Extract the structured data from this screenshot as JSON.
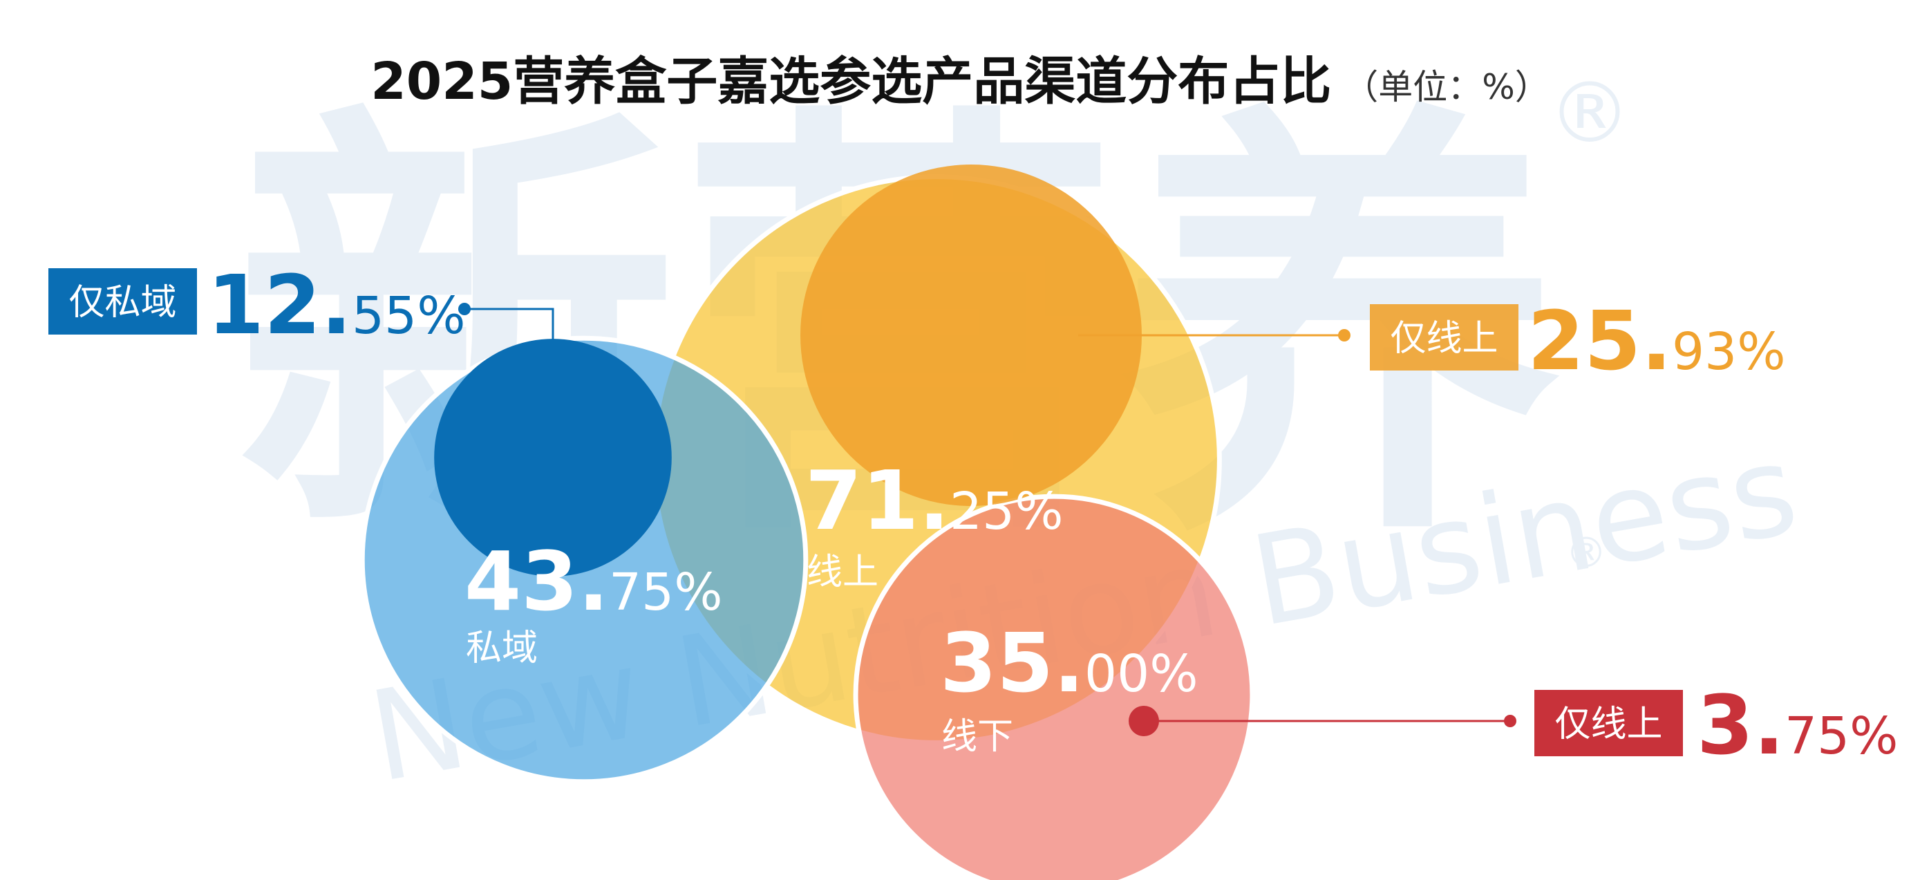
{
  "title": "2025营养盒子嘉选参选产品渠道分布占比",
  "unit": "（单位：%）",
  "watermark": {
    "cn": "新营养",
    "en": "New Nutrition Business",
    "mark": "®"
  },
  "colors": {
    "online": "#F8C330",
    "online_only": "#F0A22E",
    "private": "#4FA8E2",
    "private_only": "#0A6EB4",
    "offline": "#F07E73",
    "offline_only": "#C8323A",
    "bubble_text": "#ffffff"
  },
  "chart_data": {
    "type": "bubble",
    "title": "2025营养盒子嘉选参选产品渠道分布占比",
    "unit": "%",
    "series": [
      {
        "name": "线上",
        "value": 71.25,
        "int": "71.",
        "dec": "25%",
        "color": "#F8C330"
      },
      {
        "name": "私域",
        "value": 43.75,
        "int": "43.",
        "dec": "75%",
        "color": "#4FA8E2"
      },
      {
        "name": "线下",
        "value": 35.0,
        "int": "35.",
        "dec": "00%",
        "color": "#F07E73"
      }
    ],
    "sub_series": [
      {
        "name": "仅私域",
        "value": 12.55,
        "int": "12.",
        "dec": "55%",
        "parent": "私域",
        "color": "#0A6EB4"
      },
      {
        "name": "仅线上",
        "value": 25.93,
        "int": "25.",
        "dec": "93%",
        "parent": "线上",
        "color": "#F0A22E"
      },
      {
        "name": "仅线上",
        "value": 3.75,
        "int": "3.",
        "dec": "75%",
        "parent": "线下",
        "color": "#C8323A"
      }
    ]
  }
}
